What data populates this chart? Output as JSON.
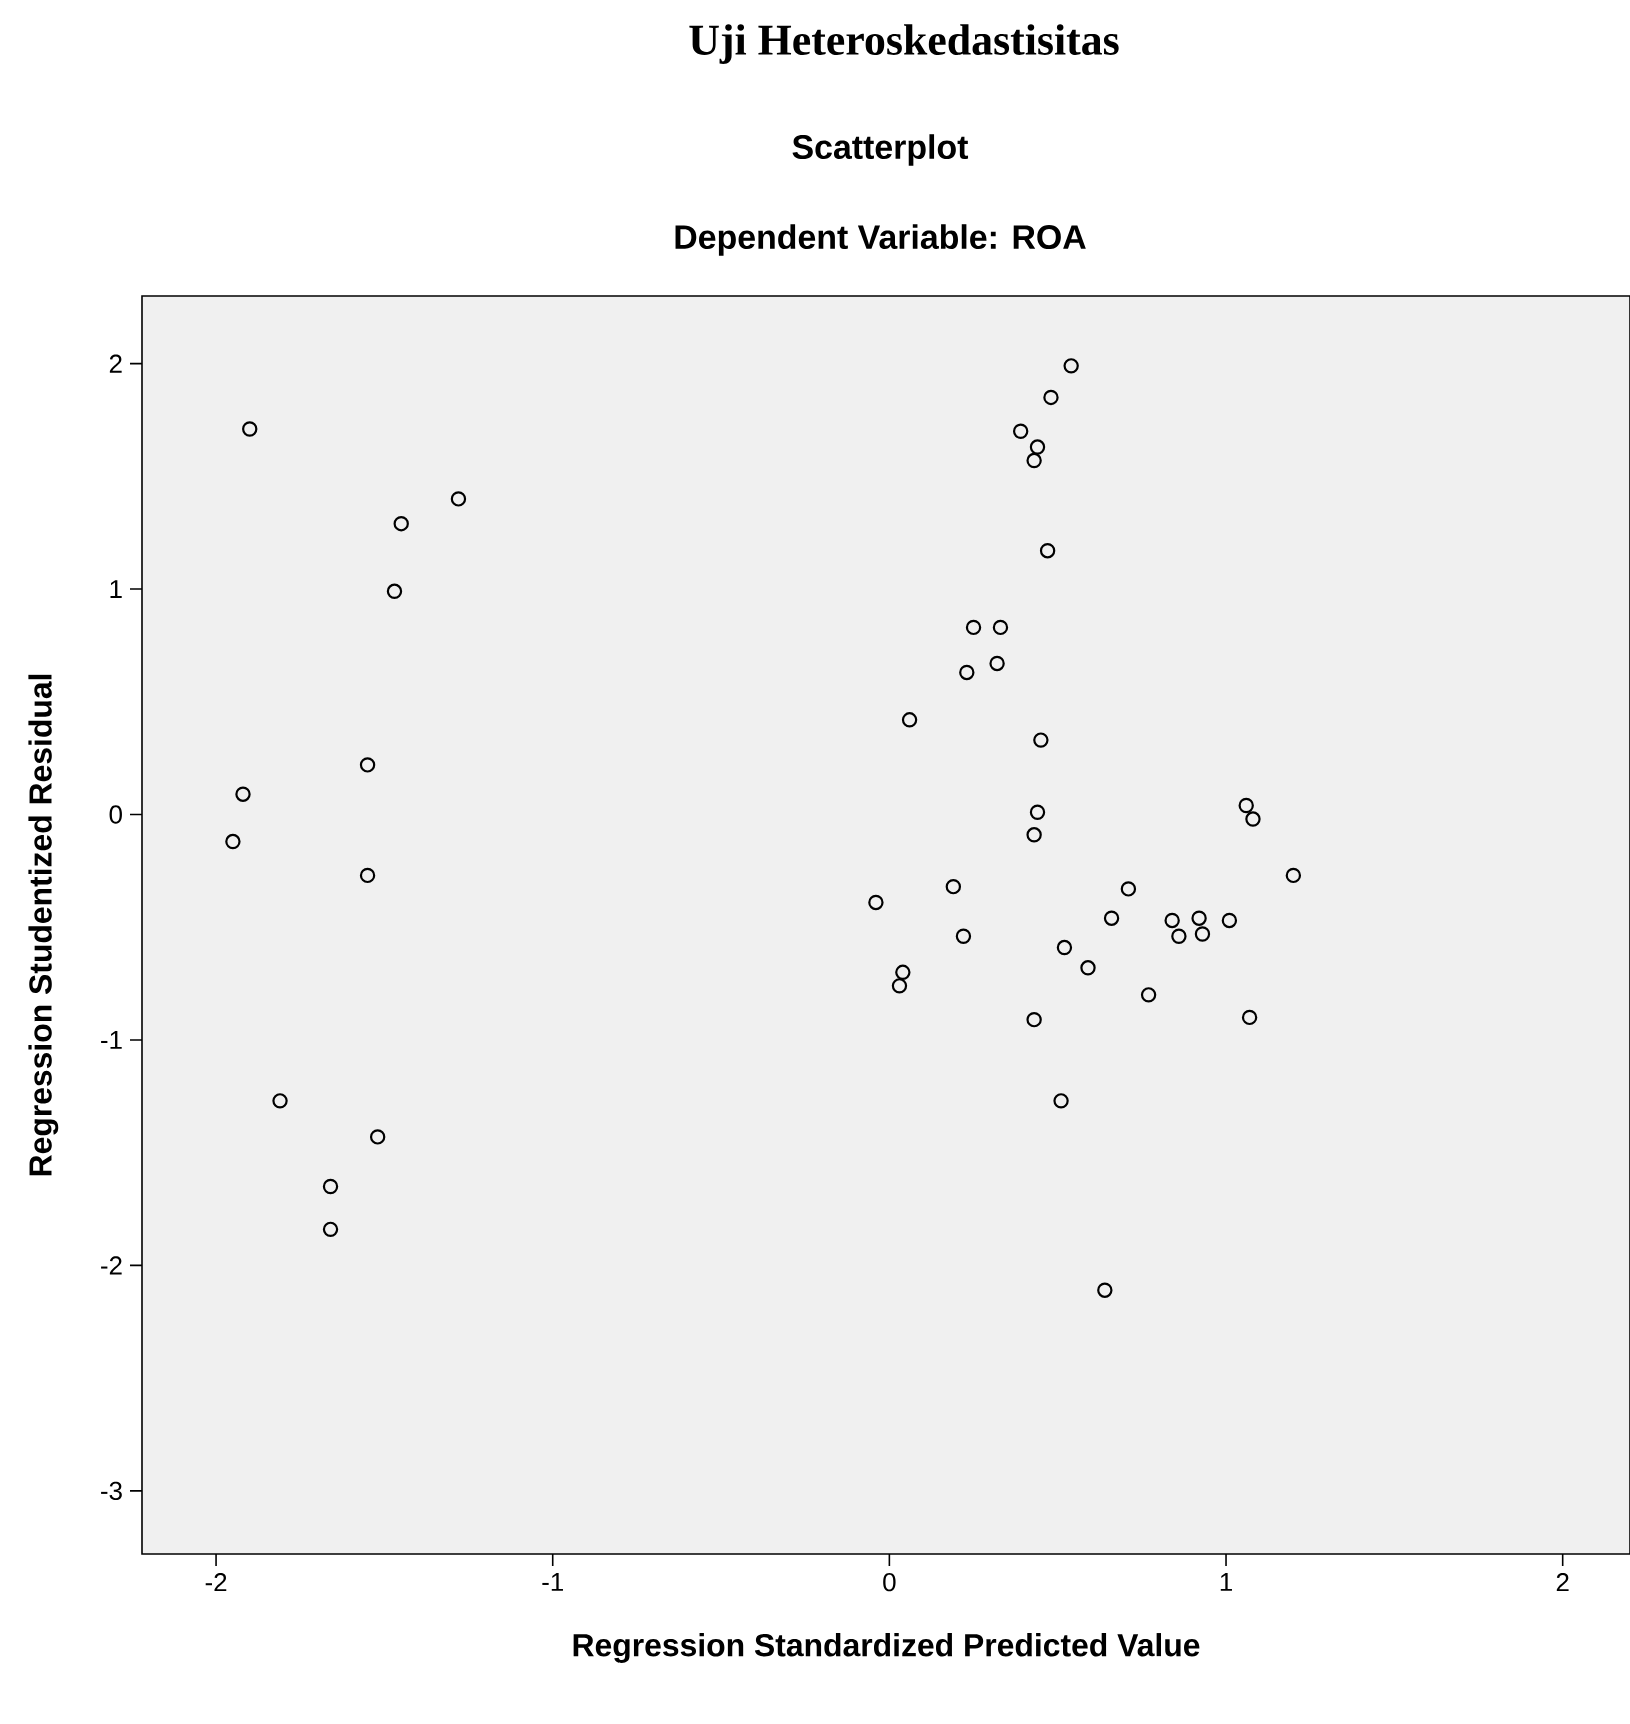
{
  "chart_data": {
    "type": "scatter",
    "title": "Scatterplot",
    "subtitle": "Dependent Variable: ROA",
    "annotations": [
      "Uji Heteroskedastisitas"
    ],
    "xlabel": "Regression Standardized Predicted Value",
    "ylabel": "Regression Studentized Residual",
    "xlim": [
      -2.22,
      2.2
    ],
    "ylim": [
      -3.28,
      2.3
    ],
    "xticks": [
      -2,
      -1,
      0,
      1,
      2
    ],
    "yticks": [
      -3,
      -2,
      -1,
      0,
      1,
      2
    ],
    "marker": "circle",
    "grid": false,
    "series": [
      {
        "color": "#000000",
        "x": [
          -1.9,
          -1.28,
          -1.45,
          -1.47,
          -1.55,
          -1.92,
          -1.95,
          -1.55,
          -1.81,
          -1.52,
          -1.66,
          -1.66,
          0.54,
          0.48,
          0.39,
          0.44,
          0.43,
          0.47,
          0.25,
          0.33,
          0.23,
          0.32,
          0.06,
          0.45,
          0.44,
          0.43,
          1.06,
          1.08,
          1.2,
          -0.04,
          0.19,
          0.71,
          0.66,
          0.84,
          0.92,
          1.01,
          0.86,
          0.93,
          0.22,
          0.52,
          0.59,
          0.04,
          0.03,
          0.77,
          0.43,
          1.07,
          0.51,
          0.64
        ],
        "values": [
          1.71,
          1.4,
          1.29,
          0.99,
          0.22,
          0.09,
          -0.12,
          -0.27,
          -1.27,
          -1.43,
          -1.65,
          -1.84,
          1.99,
          1.85,
          1.7,
          1.63,
          1.57,
          1.17,
          0.83,
          0.83,
          0.63,
          0.67,
          0.42,
          0.33,
          0.01,
          -0.09,
          0.04,
          -0.02,
          -0.27,
          -0.39,
          -0.32,
          -0.33,
          -0.46,
          -0.47,
          -0.46,
          -0.47,
          -0.54,
          -0.53,
          -0.54,
          -0.59,
          -0.68,
          -0.7,
          -0.76,
          -0.8,
          -0.91,
          -0.9,
          -1.27,
          -2.11
        ]
      }
    ]
  }
}
